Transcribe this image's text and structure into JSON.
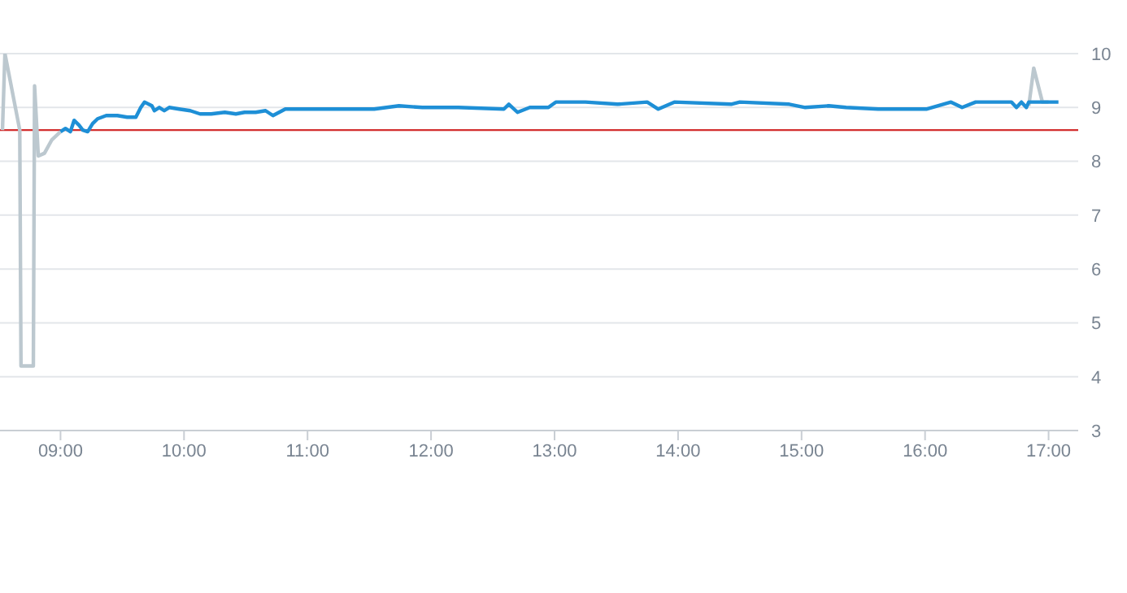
{
  "chart_data": {
    "type": "line",
    "xlim": [
      8.51,
      17.24
    ],
    "xticks": [
      {
        "value": 9,
        "label": "09:00"
      },
      {
        "value": 10,
        "label": "10:00"
      },
      {
        "value": 11,
        "label": "11:00"
      },
      {
        "value": 12,
        "label": "12:00"
      },
      {
        "value": 13,
        "label": "13:00"
      },
      {
        "value": 14,
        "label": "14:00"
      },
      {
        "value": 15,
        "label": "15:00"
      },
      {
        "value": 16,
        "label": "16:00"
      },
      {
        "value": 17,
        "label": "17:00"
      }
    ],
    "ylim": [
      3,
      10
    ],
    "yticks": [
      3,
      4,
      5,
      6,
      7,
      8,
      9,
      10
    ],
    "grid": "y",
    "marker": "none",
    "line_style": "solid",
    "series": [
      {
        "color": "#bcc8cf",
        "x": [
          8.53,
          8.55,
          8.67,
          8.68,
          8.78,
          8.79,
          8.82,
          8.87,
          8.93,
          9.0,
          12.9,
          16.84,
          16.88,
          16.95,
          17.0
        ],
        "values": [
          8.58,
          10,
          8.58,
          4.2,
          4.2,
          9.4,
          8.1,
          8.15,
          8.4,
          8.55,
          null,
          9.03,
          9.73,
          9.1,
          9.1
        ]
      },
      {
        "color": "#1e8fd6",
        "x": [
          9.0,
          9.04,
          9.08,
          9.11,
          9.15,
          9.18,
          9.22,
          9.26,
          9.3,
          9.37,
          9.46,
          9.54,
          9.61,
          9.65,
          9.68,
          9.74,
          9.76,
          9.8,
          9.84,
          9.88,
          9.96,
          10.05,
          10.13,
          10.22,
          10.33,
          10.42,
          10.49,
          10.58,
          10.66,
          10.72,
          10.82,
          11.01,
          11.54,
          11.74,
          11.93,
          12.22,
          12.59,
          12.63,
          12.7,
          12.8,
          12.95,
          13.01,
          13.25,
          13.51,
          13.75,
          13.84,
          13.97,
          14.43,
          14.5,
          14.9,
          15.03,
          15.22,
          15.36,
          15.62,
          15.84,
          16.01,
          16.21,
          16.3,
          16.41,
          16.7,
          16.74,
          16.78,
          16.82,
          16.84,
          17.08
        ],
        "values": [
          8.55,
          8.61,
          8.55,
          8.76,
          8.67,
          8.58,
          8.55,
          8.7,
          8.79,
          8.85,
          8.85,
          8.82,
          8.82,
          9.0,
          9.1,
          9.03,
          8.94,
          9.0,
          8.94,
          9.0,
          8.97,
          8.94,
          8.88,
          8.88,
          8.91,
          8.88,
          8.91,
          8.91,
          8.94,
          8.85,
          8.97,
          8.97,
          8.97,
          9.03,
          9.0,
          9.0,
          8.97,
          9.06,
          8.91,
          9.0,
          9.0,
          9.1,
          9.1,
          9.06,
          9.1,
          8.97,
          9.1,
          9.06,
          9.1,
          9.06,
          9.0,
          9.03,
          9.0,
          8.97,
          8.97,
          8.97,
          9.1,
          9.0,
          9.1,
          9.1,
          9.0,
          9.1,
          9.0,
          9.1,
          9.1
        ]
      }
    ],
    "ref_lines": [
      {
        "axis": "y",
        "value": 8.58,
        "color": "#d32f2f"
      }
    ]
  }
}
